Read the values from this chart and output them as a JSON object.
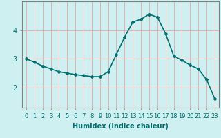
{
  "x": [
    0,
    1,
    2,
    3,
    4,
    5,
    6,
    7,
    8,
    9,
    10,
    11,
    12,
    13,
    14,
    15,
    16,
    17,
    18,
    19,
    20,
    21,
    22,
    23
  ],
  "y": [
    3.0,
    2.88,
    2.75,
    2.65,
    2.55,
    2.5,
    2.45,
    2.42,
    2.38,
    2.38,
    2.55,
    3.15,
    3.75,
    4.28,
    4.38,
    4.55,
    4.45,
    3.88,
    3.1,
    2.95,
    2.78,
    2.65,
    2.28,
    1.62
  ],
  "line_color": "#007070",
  "marker": "D",
  "marker_size": 2,
  "bg_color": "#cff0f0",
  "grid_color": "#e8b0b0",
  "xlabel": "Humidex (Indice chaleur)",
  "yticks": [
    2,
    3,
    4
  ],
  "xtick_labels": [
    "0",
    "1",
    "2",
    "3",
    "4",
    "5",
    "6",
    "7",
    "8",
    "9",
    "10",
    "11",
    "12",
    "13",
    "14",
    "15",
    "16",
    "17",
    "18",
    "19",
    "20",
    "21",
    "22",
    "23"
  ],
  "ylim": [
    1.3,
    5.0
  ],
  "xlim": [
    -0.5,
    23.5
  ],
  "xlabel_fontsize": 7,
  "ytick_fontsize": 7,
  "xtick_fontsize": 6,
  "linewidth": 1.2
}
